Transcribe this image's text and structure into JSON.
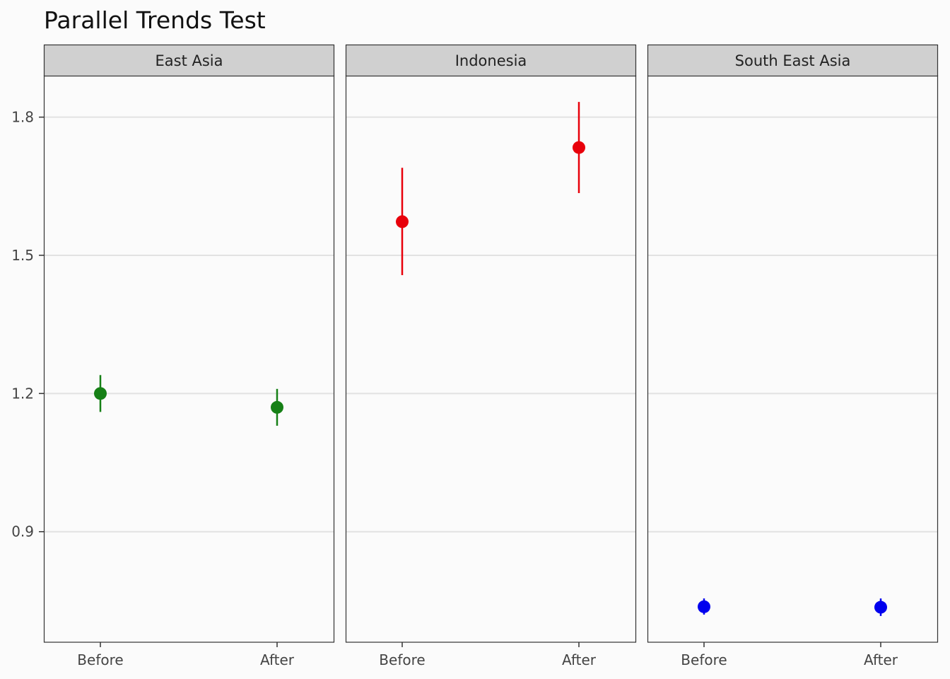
{
  "chart_data": {
    "type": "scatter",
    "title": "Parallel Trends Test",
    "xlabel": "",
    "ylabel": "",
    "x_categories": [
      "Before",
      "After"
    ],
    "y_ticks": [
      0.9,
      1.2,
      1.5,
      1.8
    ],
    "ylim": [
      0.66,
      1.89
    ],
    "grid": "horizontal major lines",
    "legend": "none",
    "panels": [
      {
        "name": "East Asia",
        "color": "#168016",
        "points": [
          {
            "x": "Before",
            "y": 1.2,
            "ymin": 1.16,
            "ymax": 1.24
          },
          {
            "x": "After",
            "y": 1.17,
            "ymin": 1.13,
            "ymax": 1.21
          }
        ]
      },
      {
        "name": "Indonesia",
        "color": "#e8000b",
        "points": [
          {
            "x": "Before",
            "y": 1.573,
            "ymin": 1.457,
            "ymax": 1.69
          },
          {
            "x": "After",
            "y": 1.734,
            "ymin": 1.635,
            "ymax": 1.833
          }
        ]
      },
      {
        "name": "South East Asia",
        "color": "#0000ee",
        "points": [
          {
            "x": "Before",
            "y": 0.737,
            "ymin": 0.72,
            "ymax": 0.755
          },
          {
            "x": "After",
            "y": 0.736,
            "ymin": 0.717,
            "ymax": 0.755
          }
        ]
      }
    ]
  }
}
